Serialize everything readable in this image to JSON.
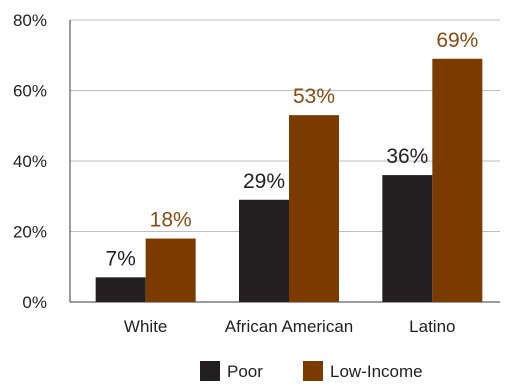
{
  "chart_data": {
    "type": "bar",
    "title": "",
    "xlabel": "",
    "ylabel": "",
    "categories": [
      "White",
      "African American",
      "Latino"
    ],
    "series": [
      {
        "name": "Poor",
        "values": [
          7,
          29,
          36
        ],
        "labels": [
          "7%",
          "29%",
          "36%"
        ],
        "color": "#231f20",
        "label_color": "#231f20"
      },
      {
        "name": "Low-Income",
        "values": [
          18,
          53,
          69
        ],
        "labels": [
          "18%",
          "53%",
          "69%"
        ],
        "color": "#7a3a00",
        "label_color": "#8a4a10"
      }
    ],
    "yticks": [
      0,
      20,
      40,
      60,
      80
    ],
    "ytick_labels": [
      "0%",
      "20%",
      "40%",
      "60%",
      "80%"
    ],
    "ylim": [
      0,
      80
    ],
    "grid": true,
    "legend_position": "bottom"
  }
}
